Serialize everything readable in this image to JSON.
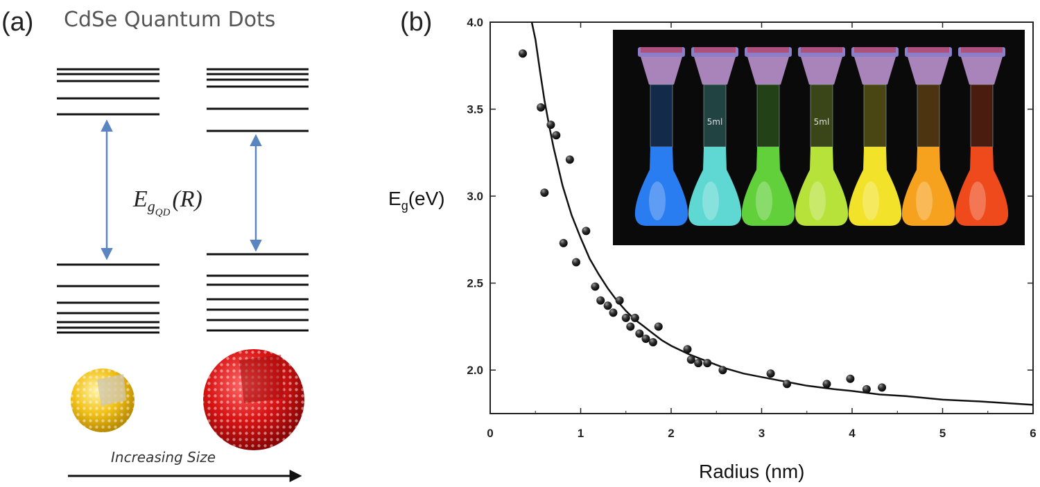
{
  "panel_a": {
    "label": "(a)",
    "title": "CdSe Quantum Dots",
    "energy_main": "E",
    "energy_sub": "g",
    "energy_subsub": "QD",
    "energy_arg": "(R)",
    "size_label": "Increasing Size",
    "colors": {
      "arrow": "#5b85c0",
      "small_dot": "#f2c21a",
      "large_dot": "#d81414"
    }
  },
  "panel_b": {
    "label": "(b)"
  },
  "chart_data": {
    "type": "scatter",
    "title": "",
    "xlabel": "Radius (nm)",
    "ylabel_main": "E",
    "ylabel_sub": "g",
    "ylabel_unit": "(eV)",
    "xlim": [
      0,
      6
    ],
    "ylim": [
      1.75,
      4.0
    ],
    "xticks": [
      0,
      1,
      2,
      3,
      4,
      5,
      6
    ],
    "xtick_labels": [
      "0",
      "1",
      "2",
      "3",
      "4",
      "5",
      "6"
    ],
    "yticks": [
      2.0,
      2.5,
      3.0,
      3.5,
      4.0
    ],
    "ytick_labels": [
      "2.0",
      "2.5",
      "3.0",
      "3.5",
      "4.0"
    ],
    "grid": false,
    "series": [
      {
        "kind": "points",
        "x": [
          0.36,
          0.56,
          0.6,
          0.67,
          0.73,
          0.81,
          0.88,
          0.95,
          1.06,
          1.16,
          1.22,
          1.3,
          1.36,
          1.43,
          1.5,
          1.55,
          1.6,
          1.65,
          1.72,
          1.8,
          1.86,
          2.18,
          2.22,
          2.3,
          2.4,
          2.57,
          3.1,
          3.28,
          3.72,
          3.98,
          4.16,
          4.33
        ],
        "y": [
          3.82,
          3.51,
          3.02,
          3.41,
          3.35,
          2.73,
          3.21,
          2.62,
          2.8,
          2.48,
          2.4,
          2.37,
          2.33,
          2.4,
          2.3,
          2.25,
          2.3,
          2.21,
          2.18,
          2.16,
          2.25,
          2.12,
          2.06,
          2.04,
          2.04,
          2.0,
          1.98,
          1.92,
          1.92,
          1.95,
          1.89,
          1.9
        ]
      },
      {
        "kind": "fit_curve",
        "x": [
          0.46,
          0.5,
          0.55,
          0.6,
          0.65,
          0.7,
          0.8,
          0.9,
          1.0,
          1.1,
          1.2,
          1.3,
          1.4,
          1.5,
          1.6,
          1.7,
          1.8,
          1.9,
          2.0,
          2.2,
          2.4,
          2.6,
          2.8,
          3.0,
          3.2,
          3.5,
          3.8,
          4.0,
          4.3,
          4.6,
          5.0,
          5.4,
          5.7,
          6.0
        ],
        "y": [
          4.02,
          3.9,
          3.72,
          3.55,
          3.41,
          3.28,
          3.06,
          2.89,
          2.76,
          2.64,
          2.55,
          2.47,
          2.4,
          2.34,
          2.29,
          2.25,
          2.21,
          2.17,
          2.14,
          2.09,
          2.05,
          2.01,
          1.98,
          1.96,
          1.94,
          1.91,
          1.89,
          1.88,
          1.86,
          1.85,
          1.83,
          1.82,
          1.81,
          1.8
        ]
      }
    ]
  },
  "inset": {
    "background": "#0a0a0a",
    "vial_colors": [
      "#2a7df0",
      "#5fd7d2",
      "#62d03a",
      "#b6e23a",
      "#f2e22a",
      "#f6a21e",
      "#ef4a1c"
    ],
    "vial_text": [
      "",
      "5ml",
      "",
      "5ml",
      "",
      "",
      ""
    ]
  }
}
